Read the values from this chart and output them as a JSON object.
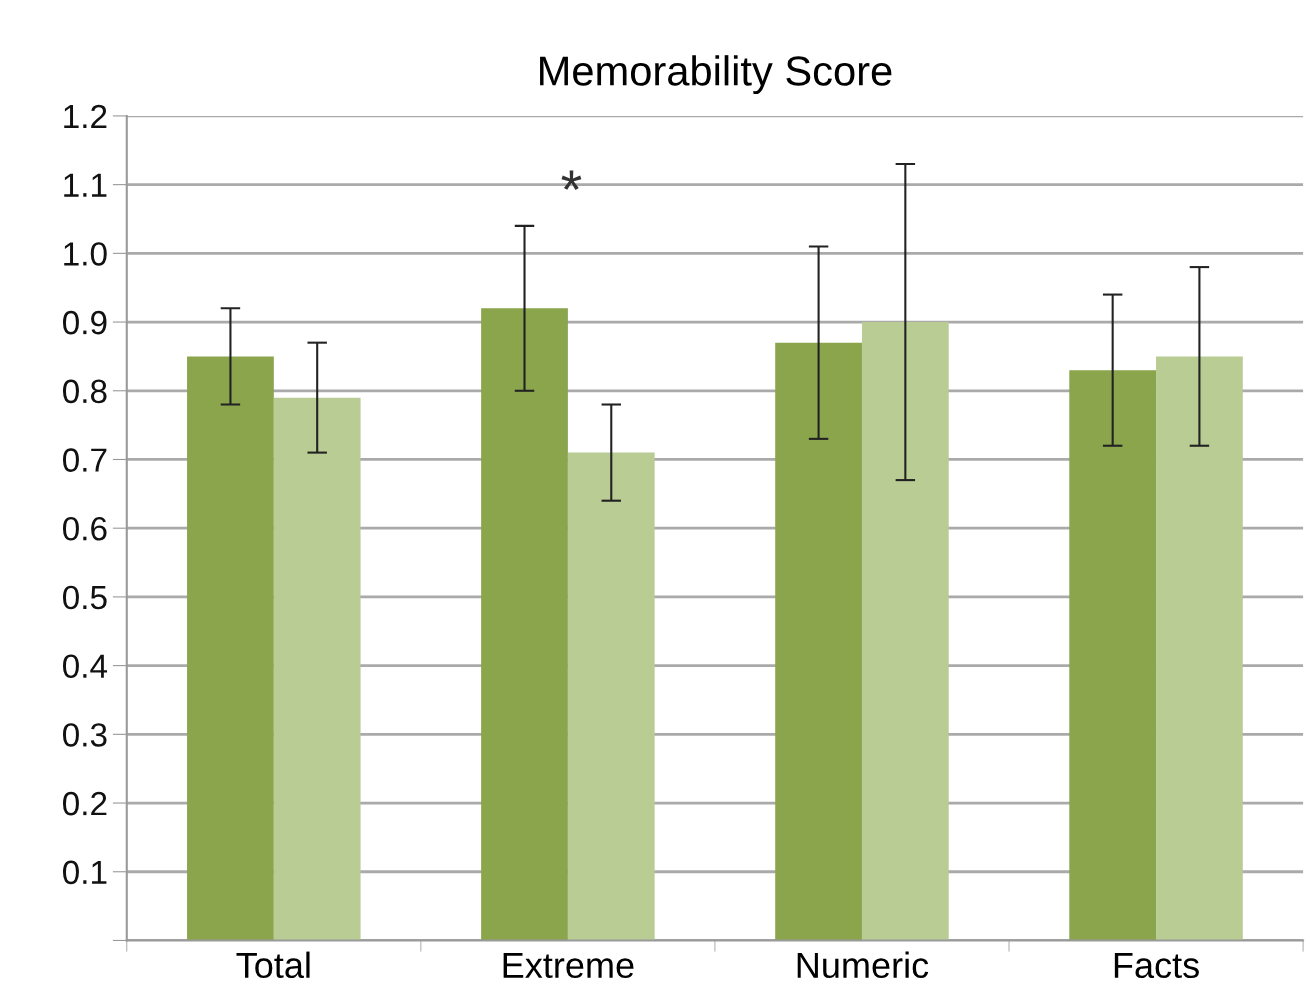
{
  "chart_data": {
    "type": "bar",
    "title": "Memorability Score",
    "categories": [
      "Total",
      "Extreme",
      "Numeric",
      "Facts"
    ],
    "series": [
      {
        "color": "#8aa54c",
        "values": [
          0.85,
          0.92,
          0.87,
          0.83
        ],
        "errors": [
          0.07,
          0.12,
          0.14,
          0.11
        ]
      },
      {
        "color": "#b8cc94",
        "values": [
          0.79,
          0.71,
          0.9,
          0.85
        ],
        "errors": [
          0.08,
          0.07,
          0.23,
          0.13
        ]
      }
    ],
    "ylim": [
      0,
      1.2
    ],
    "yticks": [
      {
        "value": 0,
        "label": null
      },
      {
        "value": 0.1,
        "label": "0.1"
      },
      {
        "value": 0.2,
        "label": "0.2"
      },
      {
        "value": 0.3,
        "label": "0.3"
      },
      {
        "value": 0.4,
        "label": "0.4"
      },
      {
        "value": 0.5,
        "label": "0.5"
      },
      {
        "value": 0.6,
        "label": "0.6"
      },
      {
        "value": 0.7,
        "label": "0.7"
      },
      {
        "value": 0.8,
        "label": "0.8"
      },
      {
        "value": 0.9,
        "label": "0.9"
      },
      {
        "value": 1.0,
        "label": "1.0"
      },
      {
        "value": 1.1,
        "label": "1.1"
      },
      {
        "value": 1.2,
        "label": "1.2"
      }
    ],
    "grid": "y",
    "annotations": [
      "*"
    ]
  }
}
